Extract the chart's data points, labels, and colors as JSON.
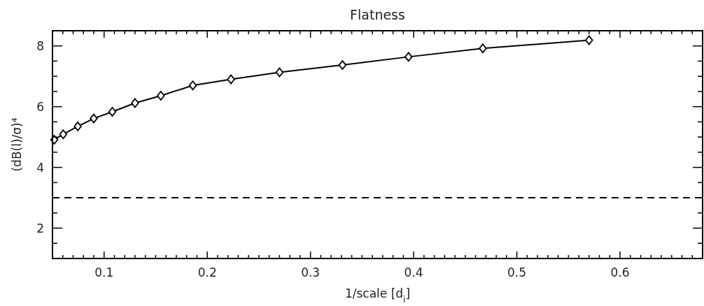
{
  "chart_data": {
    "type": "line",
    "title": "Flatness",
    "xlabel": "1/scale [d$_{i}$]",
    "ylabel": "(dB(l)/σ)⁴",
    "x": [
      0.0517,
      0.0604,
      0.0745,
      0.09,
      0.108,
      0.13,
      0.155,
      0.186,
      0.223,
      0.27,
      0.331,
      0.395,
      0.467,
      0.57
    ],
    "series": [
      {
        "color": "#000000",
        "values": [
          4.91,
          5.09,
          5.35,
          5.61,
          5.83,
          6.12,
          6.36,
          6.7,
          6.9,
          7.13,
          7.37,
          7.64,
          7.92,
          8.19
        ]
      }
    ],
    "marker": "diamond",
    "line_style": "solid",
    "xlim": [
      0.05,
      0.68
    ],
    "ylim": [
      1,
      8.5
    ],
    "xticks": [
      {
        "value": 0.06,
        "label": null
      },
      {
        "value": 0.07,
        "label": null
      },
      {
        "value": 0.08,
        "label": null
      },
      {
        "value": 0.09,
        "label": null
      },
      {
        "value": 0.1,
        "label": "0.1"
      },
      {
        "value": 0.11,
        "label": null
      },
      {
        "value": 0.12,
        "label": null
      },
      {
        "value": 0.13,
        "label": null
      },
      {
        "value": 0.14,
        "label": null
      },
      {
        "value": 0.15,
        "label": null
      },
      {
        "value": 0.16,
        "label": null
      },
      {
        "value": 0.17,
        "label": null
      },
      {
        "value": 0.18,
        "label": null
      },
      {
        "value": 0.19,
        "label": null
      },
      {
        "value": 0.2,
        "label": "0.2"
      },
      {
        "value": 0.21,
        "label": null
      },
      {
        "value": 0.22,
        "label": null
      },
      {
        "value": 0.23,
        "label": null
      },
      {
        "value": 0.24,
        "label": null
      },
      {
        "value": 0.25,
        "label": null
      },
      {
        "value": 0.26,
        "label": null
      },
      {
        "value": 0.27,
        "label": null
      },
      {
        "value": 0.28,
        "label": null
      },
      {
        "value": 0.29,
        "label": null
      },
      {
        "value": 0.3,
        "label": "0.3"
      },
      {
        "value": 0.31,
        "label": null
      },
      {
        "value": 0.32,
        "label": null
      },
      {
        "value": 0.33,
        "label": null
      },
      {
        "value": 0.34,
        "label": null
      },
      {
        "value": 0.35,
        "label": null
      },
      {
        "value": 0.36,
        "label": null
      },
      {
        "value": 0.37,
        "label": null
      },
      {
        "value": 0.38,
        "label": null
      },
      {
        "value": 0.39,
        "label": null
      },
      {
        "value": 0.4,
        "label": "0.4"
      },
      {
        "value": 0.41,
        "label": null
      },
      {
        "value": 0.42,
        "label": null
      },
      {
        "value": 0.43,
        "label": null
      },
      {
        "value": 0.44,
        "label": null
      },
      {
        "value": 0.45,
        "label": null
      },
      {
        "value": 0.46,
        "label": null
      },
      {
        "value": 0.47,
        "label": null
      },
      {
        "value": 0.48,
        "label": null
      },
      {
        "value": 0.49,
        "label": null
      },
      {
        "value": 0.5,
        "label": "0.5"
      },
      {
        "value": 0.51,
        "label": null
      },
      {
        "value": 0.52,
        "label": null
      },
      {
        "value": 0.53,
        "label": null
      },
      {
        "value": 0.54,
        "label": null
      },
      {
        "value": 0.55,
        "label": null
      },
      {
        "value": 0.56,
        "label": null
      },
      {
        "value": 0.57,
        "label": null
      },
      {
        "value": 0.58,
        "label": null
      },
      {
        "value": 0.59,
        "label": null
      },
      {
        "value": 0.6,
        "label": "0.6"
      },
      {
        "value": 0.61,
        "label": null
      },
      {
        "value": 0.62,
        "label": null
      },
      {
        "value": 0.63,
        "label": null
      },
      {
        "value": 0.64,
        "label": null
      },
      {
        "value": 0.65,
        "label": null
      },
      {
        "value": 0.66,
        "label": null
      },
      {
        "value": 0.67,
        "label": null
      }
    ],
    "yticks": [
      {
        "value": 1.5,
        "label": null
      },
      2,
      {
        "value": 2.5,
        "label": null
      },
      {
        "value": 3,
        "label": null
      },
      {
        "value": 3.5,
        "label": null
      },
      4,
      {
        "value": 4.5,
        "label": null
      },
      {
        "value": 5,
        "label": null
      },
      {
        "value": 5.5,
        "label": null
      },
      6,
      {
        "value": 6.5,
        "label": null
      },
      {
        "value": 7,
        "label": null
      },
      {
        "value": 7.5,
        "label": null
      },
      8
    ],
    "ref_lines": [
      {
        "axis": "y",
        "value": 3,
        "color": "#000000",
        "line_style": "dashed"
      }
    ]
  }
}
